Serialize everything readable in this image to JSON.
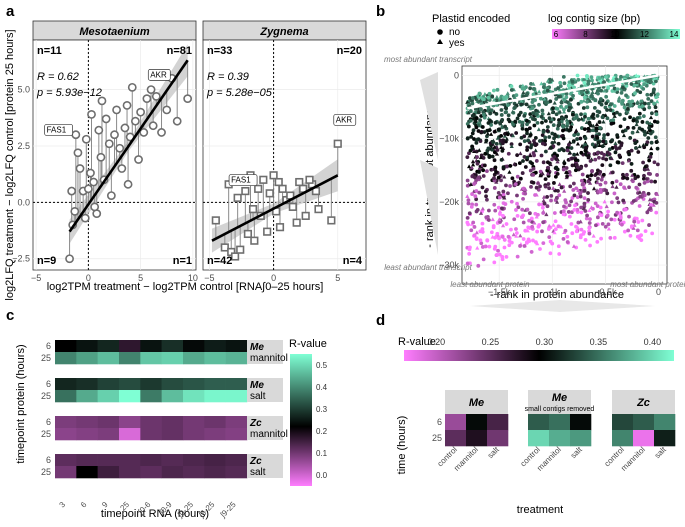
{
  "panel_labels": {
    "a": "a",
    "b": "b",
    "c": "c",
    "d": "d"
  },
  "colors": {
    "strip": "#d9d9d9",
    "panel_bg": "#ffffff",
    "grid": "#ebebeb",
    "point": "#6e6e6e",
    "fit": "#000000",
    "ci": "#c8c8c8",
    "low": "#ff7dff",
    "mid": "#000000",
    "high": "#7fffd4"
  },
  "chart_data": [
    {
      "id": "a",
      "type": "scatter",
      "xlabel": "log2TPM treatment − log2TPM control [RNA∫0–25 hours]",
      "ylabel": "log2LFQ treatment − log2LFQ control [protein 25 hours]",
      "xlim": [
        -5,
        10
      ],
      "ylim": [
        -3,
        7.2
      ],
      "yticks": [
        -2.5,
        0.0,
        2.5,
        5.0
      ],
      "ytick_labels": [
        "−2.5",
        "0.0",
        "2.5",
        "5.0"
      ],
      "facets": [
        {
          "title": "Mesotaenium",
          "xticks": [
            -5,
            0,
            5,
            10
          ],
          "xtick_labels": [
            "−5",
            "0",
            "5",
            "10"
          ],
          "marker": "circle",
          "counts": {
            "tl": "n=11",
            "tr": "n=81",
            "bl": "n=9",
            "br": "n=1"
          },
          "r_label": "R = 0.62",
          "p_label": "p = 5.93e−12",
          "fit": {
            "x": [
              -1.8,
              9.5
            ],
            "y": [
              -1.3,
              6.3
            ]
          },
          "labels": [
            {
              "text": "AKR",
              "x": 6.5,
              "y": 5.1
            },
            {
              "text": "FAS1",
              "x": -1.7,
              "y": 3.1
            }
          ],
          "points": [
            [
              -1.8,
              -2.5
            ],
            [
              -1.5,
              -1.0
            ],
            [
              -1.2,
              3.0
            ],
            [
              -1.0,
              2.2
            ],
            [
              -0.8,
              1.5
            ],
            [
              -0.5,
              0.5
            ],
            [
              -0.3,
              -0.7
            ],
            [
              -0.2,
              2.8
            ],
            [
              0.2,
              1.3
            ],
            [
              0.5,
              0.9
            ],
            [
              0.8,
              -0.5
            ],
            [
              1.0,
              3.2
            ],
            [
              1.2,
              2.0
            ],
            [
              1.5,
              1.0
            ],
            [
              1.7,
              3.7
            ],
            [
              2.0,
              2.6
            ],
            [
              2.2,
              0.3
            ],
            [
              2.5,
              3.0
            ],
            [
              2.7,
              4.1
            ],
            [
              3.0,
              2.4
            ],
            [
              3.2,
              1.5
            ],
            [
              3.5,
              3.3
            ],
            [
              3.7,
              4.3
            ],
            [
              4.0,
              2.9
            ],
            [
              4.2,
              5.1
            ],
            [
              4.5,
              3.6
            ],
            [
              4.8,
              1.9
            ],
            [
              5.0,
              4.0
            ],
            [
              5.3,
              3.1
            ],
            [
              5.6,
              4.6
            ],
            [
              6.0,
              5.0
            ],
            [
              6.5,
              4.7
            ],
            [
              7.0,
              3.1
            ],
            [
              7.5,
              4.1
            ],
            [
              8.0,
              5.5
            ],
            [
              8.5,
              3.6
            ],
            [
              9.5,
              4.6
            ],
            [
              -1.6,
              0.5
            ],
            [
              -1.3,
              -0.4
            ],
            [
              0.0,
              0.6
            ],
            [
              0.3,
              3.9
            ],
            [
              0.6,
              -0.2
            ],
            [
              1.3,
              4.5
            ],
            [
              3.8,
              0.8
            ],
            [
              6.2,
              3.4
            ]
          ]
        },
        {
          "title": "Zygnema",
          "xticks": [
            -5,
            0,
            5
          ],
          "xtick_labels": [
            "−5",
            "0",
            "5"
          ],
          "marker": "square",
          "counts": {
            "tl": "n=33",
            "tr": "n=20",
            "bl": "n=42",
            "br": "n=4"
          },
          "r_label": "R = 0.39",
          "p_label": "p = 5.28e−05",
          "fit": {
            "x": [
              -4.8,
              5.0
            ],
            "y": [
              -1.7,
              1.2
            ]
          },
          "labels": [
            {
              "text": "AKR",
              "x": 5.0,
              "y": 3.1
            },
            {
              "text": "FAS1",
              "x": -3.0,
              "y": 0.7
            }
          ],
          "points": [
            [
              -4.5,
              -0.8
            ],
            [
              -3.8,
              -2.0
            ],
            [
              -3.3,
              -2.2
            ],
            [
              -3.0,
              -2.4
            ],
            [
              -2.6,
              -2.1
            ],
            [
              -2.0,
              -1.4
            ],
            [
              -1.5,
              -1.7
            ],
            [
              -1.0,
              -0.6
            ],
            [
              -0.5,
              -1.3
            ],
            [
              0.2,
              -0.4
            ],
            [
              0.5,
              -1.1
            ],
            [
              1.0,
              0.1
            ],
            [
              1.5,
              -0.2
            ],
            [
              2.0,
              0.9
            ],
            [
              2.5,
              -0.6
            ],
            [
              3.0,
              0.8
            ],
            [
              3.5,
              -0.3
            ],
            [
              4.5,
              -0.8
            ],
            [
              5.0,
              2.6
            ],
            [
              -2.8,
              0.2
            ],
            [
              -2.2,
              0.5
            ],
            [
              -1.8,
              1.2
            ],
            [
              -1.2,
              0.6
            ],
            [
              -0.8,
              1.0
            ],
            [
              -0.3,
              0.4
            ],
            [
              0.0,
              1.2
            ],
            [
              0.7,
              0.6
            ],
            [
              1.3,
              0.3
            ],
            [
              1.8,
              -0.9
            ],
            [
              2.3,
              0.6
            ],
            [
              2.8,
              1.0
            ],
            [
              3.3,
              0.5
            ],
            [
              -3.5,
              0.8
            ],
            [
              -1.6,
              -0.3
            ],
            [
              0.4,
              0.9
            ]
          ]
        }
      ]
    },
    {
      "id": "b",
      "type": "scatter",
      "xlabel": "- rank in protein abundance",
      "ylabel": "- rank in transcript abundance",
      "xlim": [
        -1850,
        80
      ],
      "ylim": [
        -33000,
        1500
      ],
      "xticks": [
        -1500,
        -1000,
        -500,
        0
      ],
      "xtick_labels": [
        "−1.5k",
        "−1k",
        "−0.5k",
        "0"
      ],
      "yticks": [
        0,
        -10000,
        -20000,
        -30000
      ],
      "ytick_labels": [
        "0",
        "−10k",
        "−20k",
        "−30k"
      ],
      "legend_shape_title": "Plastid encoded",
      "legend_shape_items": [
        "no",
        "yes"
      ],
      "legend_color_title": "log contig size (bp)",
      "color_ticks": [
        6,
        8,
        10,
        12,
        14
      ],
      "color_tick_labels": [
        "6",
        "8",
        "10",
        "12",
        "14"
      ],
      "annotations": {
        "most_abundant_transcript": "most abundant transcript",
        "least_abundant_transcript": "least abundant transcript",
        "least_abundant_protein": "least abundant protein",
        "most_abundant_protein": "most abundant protein"
      },
      "fit": {
        "x": [
          -1800,
          0
        ],
        "y": [
          -5200,
          0
        ]
      }
    },
    {
      "id": "c",
      "type": "heatmap",
      "xlabel": "timepoint RNA (hours)",
      "ylabel": "timepoint protein (hours)",
      "columns": [
        "3",
        "6",
        "9",
        "25",
        "∫0-6",
        "∫0-9",
        "∫0-25",
        "∫6-25",
        "∫9-25"
      ],
      "rows": [
        "6",
        "25"
      ],
      "legend_title": "R-value",
      "legend_ticks": [
        0.0,
        0.1,
        0.2,
        0.3,
        0.4,
        0.5
      ],
      "legend_tick_labels": [
        "0.0",
        "0.1",
        "0.2",
        "0.3",
        "0.4",
        "0.5"
      ],
      "range": [
        -0.05,
        0.55
      ],
      "panels": [
        {
          "species": "Me",
          "treatment": "mannitol",
          "values": [
            [
              0.28,
              0.3,
              0.32,
              0.22,
              0.3,
              0.33,
              0.29,
              0.31,
              0.3
            ],
            [
              0.42,
              0.45,
              0.48,
              0.42,
              0.49,
              0.5,
              0.46,
              0.48,
              0.47
            ]
          ]
        },
        {
          "species": "Me",
          "treatment": "salt",
          "values": [
            [
              0.32,
              0.33,
              0.35,
              0.36,
              0.34,
              0.36,
              0.37,
              0.38,
              0.38
            ],
            [
              0.4,
              0.46,
              0.5,
              0.55,
              0.41,
              0.48,
              0.52,
              0.54,
              0.54
            ]
          ]
        },
        {
          "species": "Zc",
          "treatment": "mannitol",
          "values": [
            [
              0.12,
              0.13,
              0.14,
              0.1,
              0.14,
              0.15,
              0.13,
              0.14,
              0.12
            ],
            [
              0.1,
              0.11,
              0.12,
              0.0,
              0.14,
              0.15,
              0.13,
              0.12,
              0.11
            ]
          ]
        },
        {
          "species": "Zc",
          "treatment": "salt",
          "values": [
            [
              0.16,
              0.17,
              0.17,
              0.17,
              0.18,
              0.17,
              0.18,
              0.19,
              0.18
            ],
            [
              0.13,
              0.28,
              0.2,
              0.17,
              0.16,
              0.18,
              0.17,
              0.18,
              0.17
            ]
          ]
        }
      ]
    },
    {
      "id": "d",
      "type": "heatmap",
      "xlabel": "treatment",
      "ylabel": "time (hours)",
      "legend_title": "R-value",
      "legend_ticks": [
        0.2,
        0.25,
        0.3,
        0.35,
        0.4
      ],
      "legend_tick_labels": [
        "0.20",
        "0.25",
        "0.30",
        "0.35",
        "0.40"
      ],
      "range": [
        0.17,
        0.42
      ],
      "rows": [
        "6",
        "25"
      ],
      "columns": [
        "control",
        "mannitol",
        "salt"
      ],
      "panels": [
        {
          "title": "Me",
          "subtitle": "",
          "values": [
            [
              0.22,
              0.3,
              0.26
            ],
            [
              0.25,
              0.28,
              0.24
            ]
          ]
        },
        {
          "title": "Me",
          "subtitle": "small contigs removed",
          "values": [
            [
              0.34,
              0.35,
              0.3
            ],
            [
              0.4,
              0.38,
              0.37
            ]
          ]
        },
        {
          "title": "Zc",
          "subtitle": "",
          "values": [
            [
              0.33,
              0.34,
              0.36
            ],
            [
              0.36,
              0.18,
              0.31
            ]
          ]
        }
      ]
    }
  ]
}
